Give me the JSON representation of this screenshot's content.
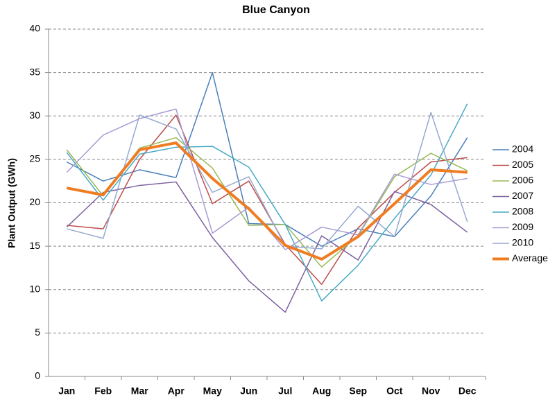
{
  "chart_data": {
    "type": "line",
    "title": "Blue Canyon",
    "y_label": "Plant Output (GWh)",
    "categories": [
      "Jan",
      "Feb",
      "Mar",
      "Apr",
      "May",
      "Jun",
      "Jul",
      "Aug",
      "Sep",
      "Oct",
      "Nov",
      "Dec"
    ],
    "ylim": [
      0,
      40
    ],
    "yticks": [
      0,
      5,
      10,
      15,
      20,
      25,
      30,
      35,
      40
    ],
    "grid": true,
    "legend": "right",
    "series": [
      {
        "name": "2004",
        "color": "#4a7ebb",
        "width": 1.5,
        "values": [
          24.7,
          22.5,
          23.8,
          22.9,
          35,
          17.6,
          17.5,
          15,
          17,
          16.1,
          20.8,
          27.5
        ]
      },
      {
        "name": "2005",
        "color": "#be4b48",
        "width": 1.5,
        "values": [
          17.4,
          17,
          25,
          30.1,
          19.9,
          22.5,
          15.2,
          10.6,
          17.1,
          21.2,
          24.7,
          25.2
        ]
      },
      {
        "name": "2006",
        "color": "#98b954",
        "width": 1.5,
        "values": [
          26.1,
          20.8,
          26.3,
          27.5,
          24,
          17.4,
          17.5,
          12.6,
          16.2,
          23,
          25.7,
          23.7
        ]
      },
      {
        "name": "2007",
        "color": "#7d60a0",
        "width": 1.5,
        "values": [
          17.2,
          21.2,
          22,
          22.4,
          16,
          11,
          7.4,
          16.2,
          13.4,
          21.3,
          19.8,
          16.6
        ]
      },
      {
        "name": "2008",
        "color": "#46aac5",
        "width": 1.5,
        "values": [
          25.8,
          20.3,
          25.6,
          26.4,
          26.5,
          24.1,
          17.5,
          8.7,
          12.8,
          18.2,
          23.2,
          31.4
        ]
      },
      {
        "name": "2009",
        "color": "#a99bd4",
        "width": 1.5,
        "values": [
          23.5,
          27.8,
          29.7,
          30.8,
          16.5,
          19.5,
          14.6,
          17.2,
          16.3,
          23.3,
          22.1,
          22.8
        ]
      },
      {
        "name": "2010",
        "color": "#95a9cf",
        "width": 1.5,
        "values": [
          17,
          15.9,
          30.1,
          28.5,
          21.2,
          23,
          15,
          14.7,
          19.6,
          16.1,
          30.4,
          17.8
        ]
      },
      {
        "name": "Average",
        "color": "#f07c22",
        "width": 4,
        "values": [
          21.7,
          20.9,
          26.1,
          26.9,
          22.8,
          19.3,
          15.1,
          13.5,
          16.1,
          19.9,
          23.8,
          23.5
        ]
      }
    ]
  }
}
